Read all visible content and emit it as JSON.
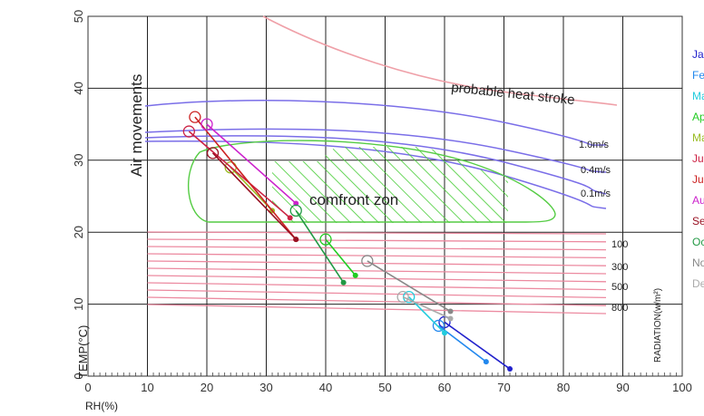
{
  "chart_data": {
    "type": "line",
    "title": "",
    "xlabel": "RH(%)",
    "ylabel": "TEMP(°C)",
    "right_axis_label": "RADIATION(w/m²)",
    "xlim": [
      0,
      100
    ],
    "ylim": [
      0,
      50
    ],
    "x_ticks": [
      "0",
      "10",
      "20",
      "30",
      "40",
      "50",
      "60",
      "70",
      "80",
      "90",
      "100"
    ],
    "y_ticks": [
      "0",
      "10",
      "20",
      "30",
      "40",
      "50"
    ],
    "grid": true,
    "legend_position": "right",
    "annotations": {
      "air_movements": "Air movements",
      "heat_stroke": "probable heat stroke",
      "comfort_zone": "comfront zon",
      "wind_speeds": [
        "1.0m/s",
        "0.4m/s",
        "0.1m/s"
      ],
      "radiation_levels": [
        "100",
        "300",
        "500",
        "800"
      ]
    },
    "series": [
      {
        "name": "Jan",
        "color": "#2222cc",
        "points": [
          {
            "x": 60,
            "y": 7.5
          },
          {
            "x": 71,
            "y": 1
          }
        ]
      },
      {
        "name": "Feb",
        "color": "#2288ee",
        "points": [
          {
            "x": 59,
            "y": 7.0
          },
          {
            "x": 67,
            "y": 2
          }
        ]
      },
      {
        "name": "Mar",
        "color": "#22ccdd",
        "points": [
          {
            "x": 54,
            "y": 11
          },
          {
            "x": 60,
            "y": 6
          }
        ]
      },
      {
        "name": "Apr",
        "color": "#22cc22",
        "points": [
          {
            "x": 40,
            "y": 19
          },
          {
            "x": 45,
            "y": 14
          }
        ]
      },
      {
        "name": "May",
        "color": "#99bb22",
        "points": [
          {
            "x": 24,
            "y": 29
          },
          {
            "x": 31,
            "y": 23
          }
        ]
      },
      {
        "name": "Jun",
        "color": "#cc2244",
        "points": [
          {
            "x": 17,
            "y": 34
          },
          {
            "x": 34,
            "y": 22
          }
        ]
      },
      {
        "name": "Jul",
        "color": "#cc2222",
        "points": [
          {
            "x": 18,
            "y": 36
          },
          {
            "x": 35,
            "y": 19
          }
        ]
      },
      {
        "name": "Aug",
        "color": "#cc22cc",
        "points": [
          {
            "x": 20,
            "y": 35
          },
          {
            "x": 35,
            "y": 24
          }
        ]
      },
      {
        "name": "Sep",
        "color": "#991122",
        "points": [
          {
            "x": 21,
            "y": 31
          },
          {
            "x": 35,
            "y": 19
          }
        ]
      },
      {
        "name": "Oct",
        "color": "#229944",
        "points": [
          {
            "x": 35,
            "y": 23
          },
          {
            "x": 43,
            "y": 13
          }
        ]
      },
      {
        "name": "Nov",
        "color": "#888888",
        "points": [
          {
            "x": 47,
            "y": 16
          },
          {
            "x": 61,
            "y": 9
          }
        ]
      },
      {
        "name": "Dec",
        "color": "#aaaaaa",
        "points": [
          {
            "x": 53,
            "y": 11
          },
          {
            "x": 61,
            "y": 8
          }
        ]
      }
    ]
  }
}
